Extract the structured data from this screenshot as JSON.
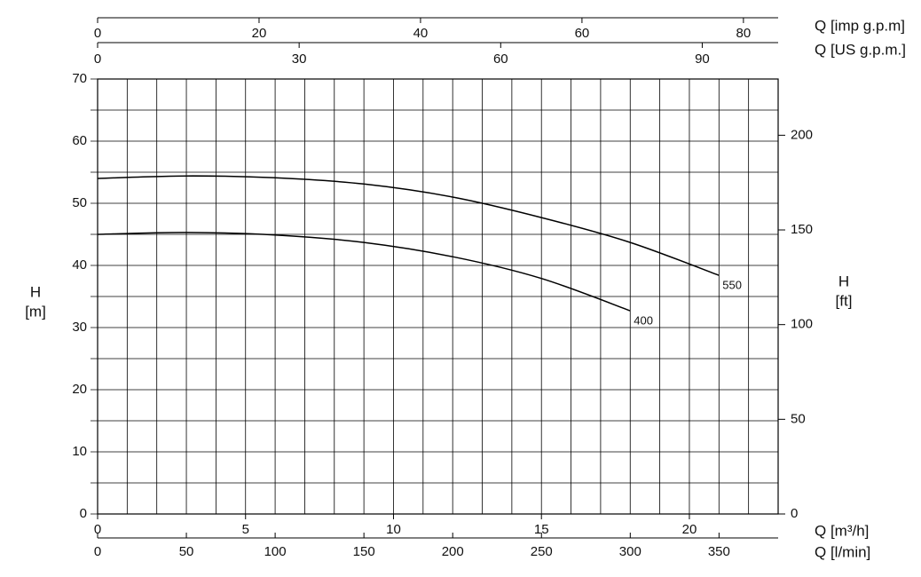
{
  "chart_data": {
    "type": "line",
    "xlabel": "Q [m³/h]",
    "xlim": [
      0,
      23
    ],
    "xticks": [
      0,
      5,
      10,
      15,
      20
    ],
    "xgrid": [
      0,
      1,
      2,
      3,
      4,
      5,
      6,
      7,
      8,
      9,
      10,
      11,
      12,
      13,
      14,
      15,
      16,
      17,
      18,
      19,
      20,
      21,
      22,
      23
    ],
    "ylabel": [
      "H",
      "[m]"
    ],
    "ylim": [
      0,
      70
    ],
    "yticks": [
      0,
      10,
      20,
      30,
      40,
      50,
      60,
      70
    ],
    "ygrid": [
      0,
      5,
      10,
      15,
      20,
      25,
      30,
      35,
      40,
      45,
      50,
      55,
      60,
      65,
      70
    ],
    "y2label": [
      "H",
      "[ft]"
    ],
    "y2lim": [
      0,
      229.7
    ],
    "y2ticks": [
      0,
      50,
      100,
      150,
      200
    ],
    "extra_x_axes": [
      {
        "label": "Q [l/min]",
        "lim": [
          0,
          383.3
        ],
        "ticks": [
          0,
          50,
          100,
          150,
          200,
          250,
          300,
          350
        ]
      },
      {
        "label": "Q [imp g.p.m]",
        "lim": [
          0,
          84.3
        ],
        "ticks": [
          0,
          20,
          40,
          60,
          80
        ]
      },
      {
        "label": "Q [US g.p.m.]",
        "lim": [
          0,
          101.3
        ],
        "ticks": [
          0,
          30,
          60,
          90
        ]
      }
    ],
    "series": [
      {
        "name": "550",
        "color": "#000000",
        "x": [
          0,
          3,
          6,
          9,
          12,
          15,
          18,
          21
        ],
        "values": [
          54.0,
          54.4,
          54.1,
          53.1,
          51.0,
          47.7,
          43.7,
          38.4
        ]
      },
      {
        "name": "400",
        "color": "#000000",
        "x": [
          0,
          3,
          6,
          9,
          12,
          15,
          18
        ],
        "values": [
          45.0,
          45.3,
          44.9,
          43.7,
          41.4,
          37.9,
          32.7
        ]
      }
    ],
    "grid": true
  }
}
